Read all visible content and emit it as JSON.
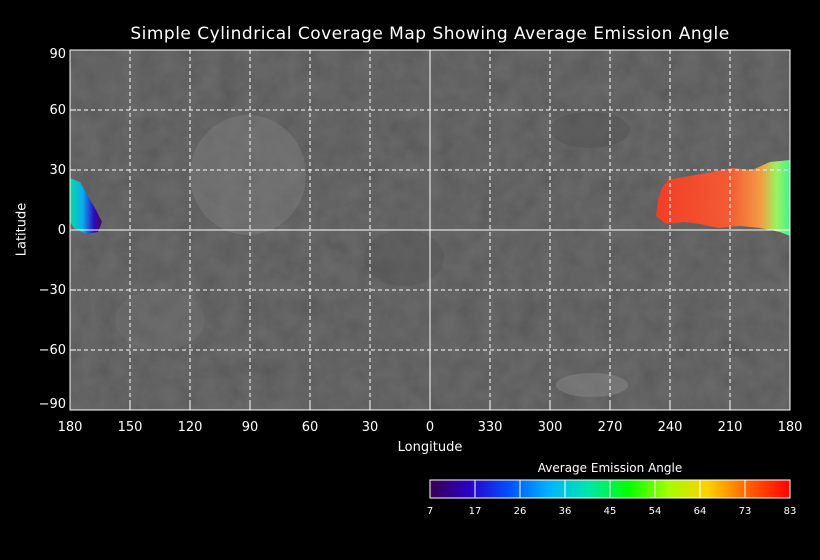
{
  "map": {
    "title": "Simple Cylindrical Coverage Map Showing Average Emission Angle",
    "xlabel": "Longitude",
    "ylabel": "Latitude",
    "x_ticks": [
      "180",
      "150",
      "120",
      "90",
      "60",
      "30",
      "0",
      "330",
      "300",
      "270",
      "240",
      "210",
      "180"
    ],
    "y_ticks": [
      "90",
      "60",
      "30",
      "0",
      "−30",
      "−60",
      "−90"
    ],
    "grid": true,
    "background": "grayscale-basemap",
    "colors": {
      "background": "#000000",
      "grid": "#ffffff",
      "text": "#ffffff",
      "basemap": "#6b6b6b"
    }
  },
  "colorbar": {
    "title": "Average Emission Angle",
    "ticks": [
      "7",
      "17",
      "26",
      "36",
      "45",
      "54",
      "64",
      "73",
      "83"
    ],
    "stops": [
      "#3b0050",
      "#2a00c8",
      "#0050ff",
      "#00b4ff",
      "#00e6aa",
      "#00ff00",
      "#a0ff00",
      "#ffd200",
      "#ff6400",
      "#ff0000"
    ]
  },
  "coverage": [
    {
      "region": "west-limb-patch",
      "emission_min": 7,
      "emission_max": 45
    },
    {
      "region": "east-coverage-patch",
      "emission_min": 45,
      "emission_max": 83
    }
  ]
}
